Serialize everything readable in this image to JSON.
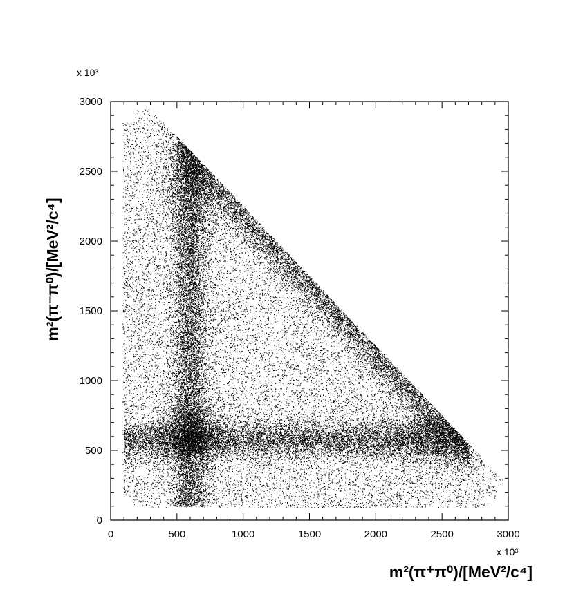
{
  "chart_data": {
    "type": "scatter",
    "title": "",
    "xlabel": "m²(π⁺π⁰)/[MeV²/c⁴]",
    "ylabel": "m²(π⁻π⁰)/[MeV²/c⁴]",
    "x_multiplier": "x 10³",
    "y_multiplier": "x 10³",
    "xlim": [
      0,
      3000
    ],
    "ylim": [
      0,
      3000
    ],
    "x_ticks": [
      "0",
      "500",
      "1000",
      "1500",
      "2000",
      "2500",
      "3000"
    ],
    "y_ticks": [
      "0",
      "500",
      "1000",
      "1500",
      "2000",
      "2500",
      "3000"
    ],
    "grid": false,
    "description_of_density": "Dalitz plot with uniform background over the kinematic region bounded by x > 90, y > 90 and x + y < 3250 (approx., units 10³ MeV²/c⁴), plus three resonance bands",
    "bands": [
      {
        "axis": "x",
        "center": 600,
        "width": 80,
        "range": [
          100,
          2700
        ]
      },
      {
        "axis": "y",
        "center": 580,
        "width": 80,
        "range": [
          100,
          2700
        ]
      },
      {
        "axis": "x+y",
        "center": 3200,
        "width": 110,
        "range": [
          500,
          2700
        ]
      }
    ],
    "point_color": "#000000"
  }
}
